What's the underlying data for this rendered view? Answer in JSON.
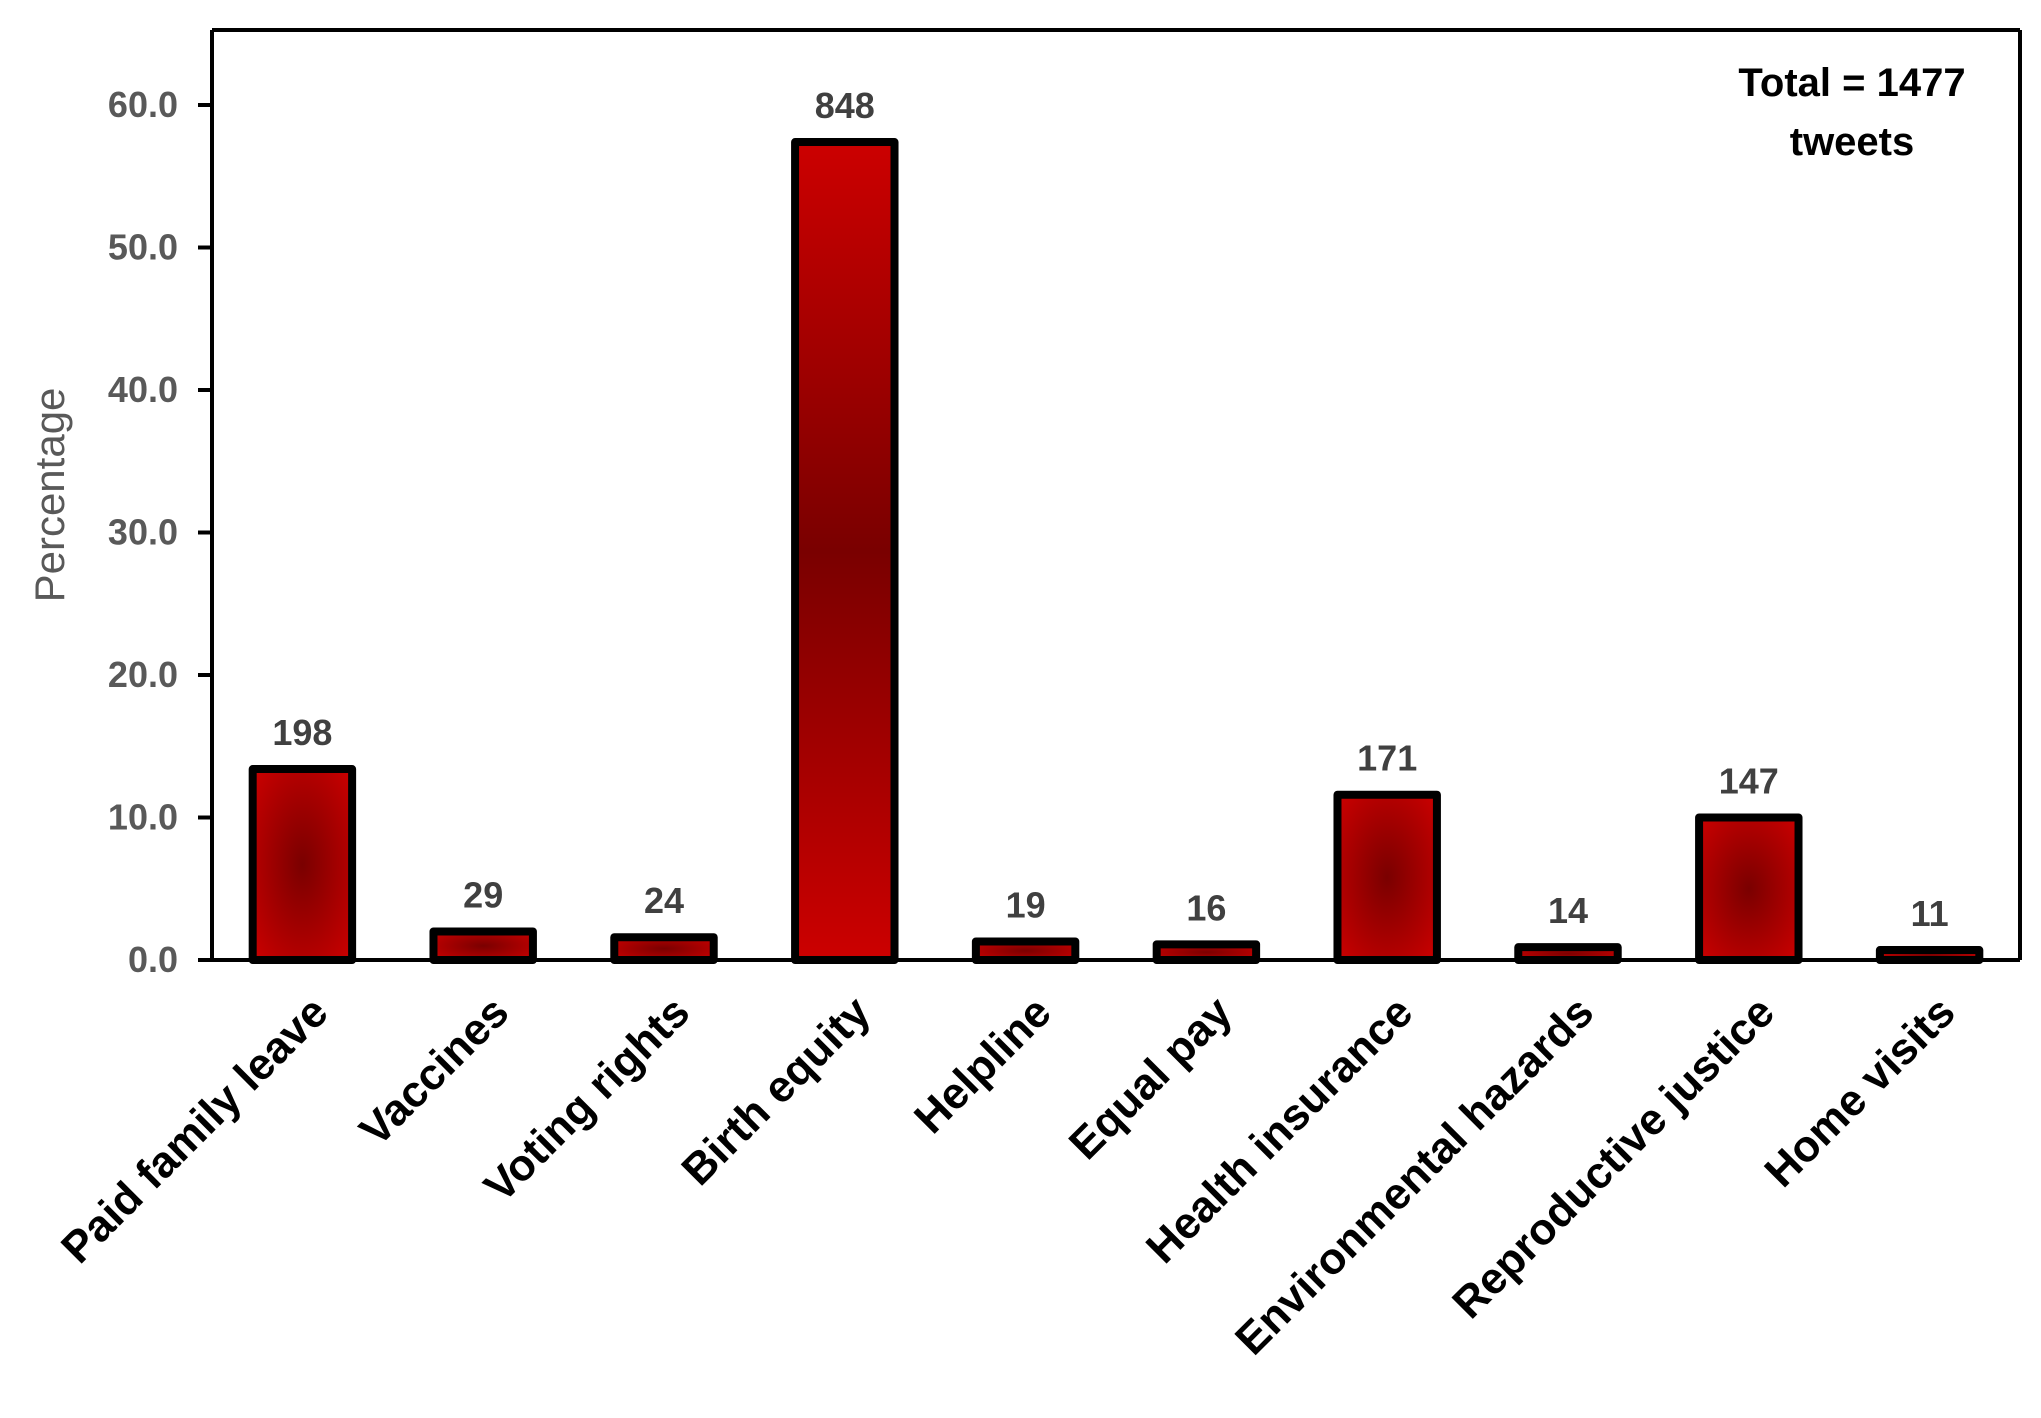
{
  "chart_data": {
    "type": "bar",
    "categories": [
      "Paid family leave",
      "Vaccines",
      "Voting rights",
      "Birth equity",
      "Helpline",
      "Equal pay",
      "Health insurance",
      "Environmental hazards",
      "Reproductive justice",
      "Home visits"
    ],
    "values": [
      13.4,
      2.0,
      1.6,
      57.4,
      1.3,
      1.1,
      11.6,
      0.9,
      10.0,
      0.7
    ],
    "data_labels": [
      "198",
      "29",
      "24",
      "848",
      "19",
      "16",
      "171",
      "14",
      "147",
      "11"
    ],
    "title": "",
    "xlabel": "",
    "ylabel": "Percentage",
    "ylim": [
      0,
      65
    ],
    "yticks": [
      "0.0",
      "10.0",
      "20.0",
      "30.0",
      "40.0",
      "50.0",
      "60.0"
    ],
    "annotation": {
      "line1": "Total = 1477",
      "line2": "tweets",
      "placement": "top-right"
    },
    "grid": false,
    "legend": "none",
    "colors": {
      "bar_center": "#7a0000",
      "bar_edge": "#cc0000",
      "bar_outline": "#000000"
    }
  }
}
